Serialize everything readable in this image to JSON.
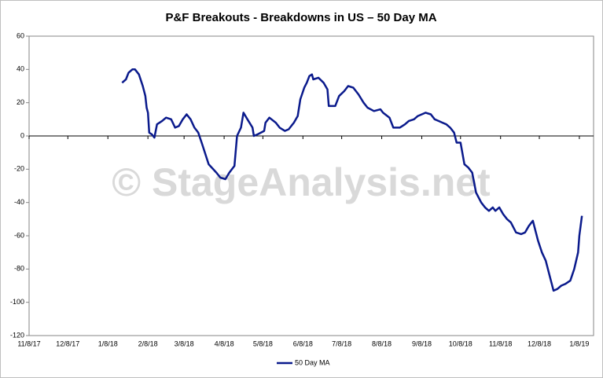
{
  "chart_data": {
    "type": "line",
    "title": "P&F Breakouts - Breakdowns in US – 50 Day MA",
    "watermark": "© StageAnalysis.net",
    "x": [
      "1/19/18",
      "1/22/18",
      "1/24/18",
      "1/27/18",
      "1/29/18",
      "2/1/18",
      "2/4/18",
      "2/6/18",
      "2/7/18",
      "2/8/18",
      "2/9/18",
      "2/11/18",
      "2/13/18",
      "2/15/18",
      "2/19/18",
      "2/22/18",
      "2/26/18",
      "3/1/18",
      "3/4/18",
      "3/7/18",
      "3/10/18",
      "3/13/18",
      "3/16/18",
      "3/19/18",
      "3/22/18",
      "3/27/18",
      "4/2/18",
      "4/5/18",
      "4/9/18",
      "4/12/18",
      "4/16/18",
      "4/18/18",
      "4/21/18",
      "4/23/18",
      "4/26/18",
      "4/30/18",
      "5/1/18",
      "5/4/18",
      "5/9/18",
      "5/10/18",
      "5/13/18",
      "5/18/18",
      "5/21/18",
      "5/25/18",
      "5/28/18",
      "6/1/18",
      "6/4/18",
      "6/6/18",
      "6/9/18",
      "6/11/18",
      "6/13/18",
      "6/15/18",
      "6/16/18",
      "6/20/18",
      "6/24/18",
      "6/27/18",
      "6/28/18",
      "7/3/18",
      "7/6/18",
      "7/10/18",
      "7/13/18",
      "7/17/18",
      "7/21/18",
      "7/25/18",
      "7/28/18",
      "8/2/18",
      "8/7/18",
      "8/9/18",
      "8/14/18",
      "8/17/18",
      "8/22/18",
      "8/26/18",
      "8/29/18",
      "9/2/18",
      "9/5/18",
      "9/8/18",
      "9/11/18",
      "9/15/18",
      "9/18/18",
      "9/21/18",
      "9/24/18",
      "9/27/18",
      "9/30/18",
      "10/3/18",
      "10/5/18",
      "10/8/18",
      "10/11/18",
      "10/14/18",
      "10/17/18",
      "10/20/18",
      "10/24/18",
      "10/27/18",
      "10/30/18",
      "11/2/18",
      "11/4/18",
      "11/7/18",
      "11/10/18",
      "11/13/18",
      "11/16/18",
      "11/20/18",
      "11/24/18",
      "11/27/18",
      "11/30/18",
      "12/3/18",
      "12/7/18",
      "12/10/18",
      "12/13/18",
      "12/16/18",
      "12/19/18",
      "12/22/18",
      "12/25/18",
      "12/28/18",
      "1/1/19",
      "1/4/19",
      "1/7/19",
      "1/8/19",
      "1/10/19"
    ],
    "series": [
      {
        "name": "50 Day MA",
        "color": "#0a1a8c",
        "values": [
          32,
          34,
          38,
          40,
          40,
          37,
          30,
          24,
          17,
          14,
          2,
          1,
          -1,
          7,
          9,
          11,
          10,
          5,
          6,
          10,
          13,
          10,
          5,
          2,
          -5,
          -17,
          -22,
          -25,
          -26,
          -22,
          -18,
          0,
          5,
          14,
          10,
          5,
          0,
          1,
          3,
          8,
          11,
          8,
          5,
          3,
          4,
          8,
          12,
          22,
          29,
          32,
          36,
          37,
          34,
          35,
          32,
          28,
          18,
          18,
          24,
          27,
          30,
          29,
          25,
          20,
          17,
          15,
          16,
          14,
          11,
          5,
          5,
          7,
          9,
          10,
          12,
          13,
          14,
          13,
          10,
          9,
          8,
          7,
          5,
          2,
          -4,
          -4,
          -17,
          -19,
          -22,
          -34,
          -40,
          -43,
          -45,
          -43,
          -45,
          -43,
          -47,
          -50,
          -52,
          -58,
          -59,
          -58,
          -54,
          -51,
          -63,
          -70,
          -75,
          -84,
          -93,
          -92,
          -90,
          -89,
          -87,
          -80,
          -70,
          -60,
          -48
        ]
      }
    ],
    "xlim": [
      "11/8/17",
      "1/19/19"
    ],
    "xticks": [
      "11/8/17",
      "12/8/17",
      "1/8/18",
      "2/8/18",
      "3/8/18",
      "4/8/18",
      "5/8/18",
      "6/8/18",
      "7/8/18",
      "8/8/18",
      "9/8/18",
      "10/8/18",
      "11/8/18",
      "12/8/18",
      "1/8/19"
    ],
    "ylim": [
      -120,
      60
    ],
    "yticks": [
      -120,
      -100,
      -80,
      -60,
      -40,
      -20,
      0,
      20,
      40,
      60
    ],
    "legend": "bottom"
  }
}
